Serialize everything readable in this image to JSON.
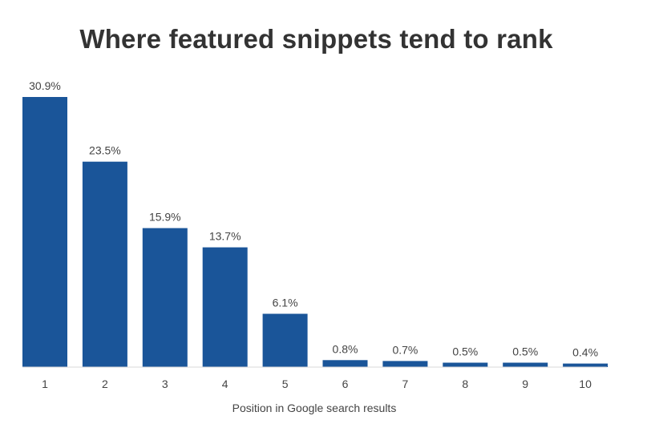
{
  "chart_data": {
    "type": "bar",
    "title": "Where featured snippets tend to rank",
    "xlabel": "Position in Google search results",
    "ylabel": "",
    "categories": [
      "1",
      "2",
      "3",
      "4",
      "5",
      "6",
      "7",
      "8",
      "9",
      "10"
    ],
    "values": [
      30.9,
      23.5,
      15.9,
      13.7,
      6.1,
      0.8,
      0.7,
      0.5,
      0.5,
      0.4
    ],
    "data_labels": [
      "30.9%",
      "23.5%",
      "15.9%",
      "13.7%",
      "6.1%",
      "0.8%",
      "0.7%",
      "0.5%",
      "0.5%",
      "0.4%"
    ],
    "ylim": [
      0,
      30.9
    ],
    "grid": false,
    "legend": "none",
    "bar_color": "#1a5599",
    "baseline_color": "#d9d9d9"
  }
}
